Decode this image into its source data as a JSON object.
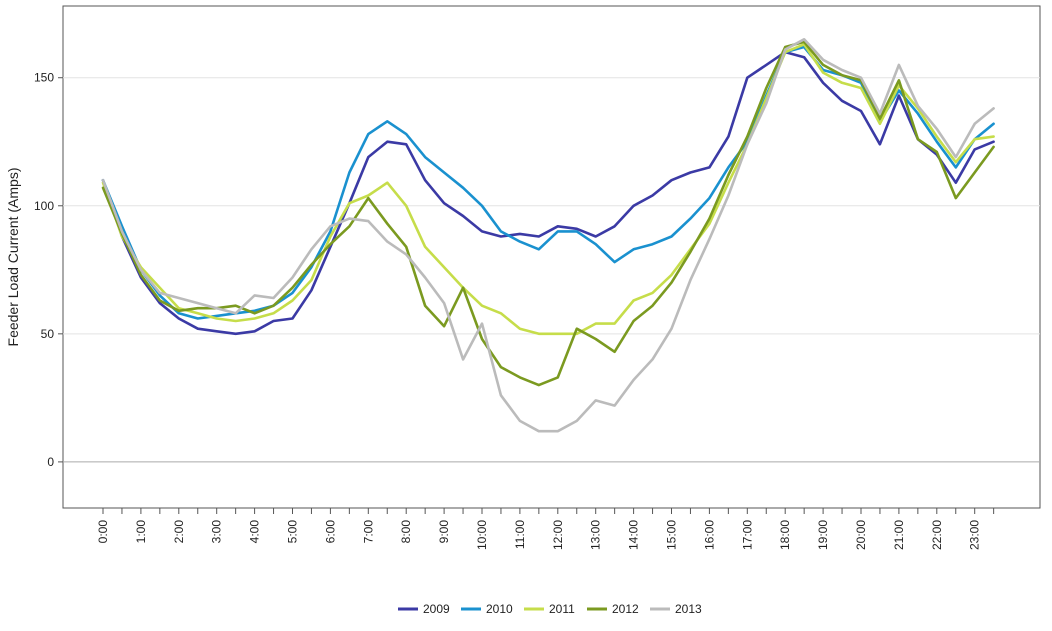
{
  "chart_data": {
    "type": "line",
    "title": "",
    "xlabel": "",
    "ylabel": "Feeder Load Current (Amps)",
    "ylim": [
      -18,
      178
    ],
    "yticks": [
      0,
      50,
      100,
      150
    ],
    "xtick_labels": [
      "0:00",
      "1:00",
      "2:00",
      "3:00",
      "4:00",
      "5:00",
      "6:00",
      "7:00",
      "8:00",
      "9:00",
      "10:00",
      "11:00",
      "12:00",
      "13:00",
      "14:00",
      "15:00",
      "16:00",
      "17:00",
      "18:00",
      "19:00",
      "20:00",
      "21:00",
      "22:00",
      "23:00"
    ],
    "x": [
      "0:00",
      "0:30",
      "1:00",
      "1:30",
      "2:00",
      "2:30",
      "3:00",
      "3:30",
      "4:00",
      "4:30",
      "5:00",
      "5:30",
      "6:00",
      "6:30",
      "7:00",
      "7:30",
      "8:00",
      "8:30",
      "9:00",
      "9:30",
      "10:00",
      "10:30",
      "11:00",
      "11:30",
      "12:00",
      "12:30",
      "13:00",
      "13:30",
      "14:00",
      "14:30",
      "15:00",
      "15:30",
      "16:00",
      "16:30",
      "17:00",
      "17:30",
      "18:00",
      "18:30",
      "19:00",
      "19:30",
      "20:00",
      "20:30",
      "21:00",
      "21:30",
      "22:00",
      "22:30",
      "23:00",
      "23:30"
    ],
    "grid": "horizontal",
    "legend_position": "bottom",
    "series": [
      {
        "name": "2009",
        "color": "#3b3aa5",
        "values": [
          110,
          88,
          72,
          62,
          56,
          52,
          51,
          50,
          51,
          55,
          56,
          67,
          84,
          101,
          119,
          125,
          124,
          110,
          101,
          96,
          90,
          88,
          89,
          88,
          92,
          91,
          88,
          92,
          100,
          104,
          110,
          113,
          115,
          127,
          150,
          155,
          160,
          158,
          148,
          141,
          137,
          124,
          143,
          126,
          120,
          109,
          122,
          125
        ]
      },
      {
        "name": "2010",
        "color": "#1a91cf",
        "values": [
          110,
          92,
          75,
          65,
          58,
          56,
          57,
          58,
          59,
          61,
          66,
          76,
          90,
          113,
          128,
          133,
          128,
          119,
          113,
          107,
          100,
          90,
          86,
          83,
          90,
          90,
          85,
          78,
          83,
          85,
          88,
          95,
          103,
          115,
          125,
          143,
          160,
          162,
          153,
          151,
          148,
          133,
          145,
          136,
          125,
          115,
          126,
          132
        ]
      },
      {
        "name": "2011",
        "color": "#c6dd4a",
        "values": [
          109,
          88,
          76,
          68,
          60,
          58,
          56,
          55,
          56,
          58,
          63,
          71,
          88,
          101,
          104,
          109,
          100,
          84,
          76,
          68,
          61,
          58,
          52,
          50,
          50,
          50,
          54,
          54,
          63,
          66,
          73,
          83,
          93,
          109,
          124,
          142,
          160,
          163,
          152,
          148,
          146,
          132,
          147,
          138,
          127,
          117,
          126,
          127
        ]
      },
      {
        "name": "2012",
        "color": "#7b9a20",
        "values": [
          107,
          89,
          73,
          63,
          59,
          60,
          60,
          61,
          58,
          61,
          68,
          77,
          85,
          92,
          103,
          93,
          84,
          61,
          53,
          68,
          48,
          37,
          33,
          30,
          33,
          52,
          48,
          43,
          55,
          61,
          70,
          82,
          95,
          112,
          127,
          146,
          162,
          164,
          155,
          151,
          149,
          134,
          149,
          126,
          121,
          103,
          113,
          123
        ]
      },
      {
        "name": "2013",
        "color": "#bbbbbb",
        "values": [
          110,
          90,
          75,
          66,
          64,
          62,
          60,
          58,
          65,
          64,
          72,
          83,
          92,
          95,
          94,
          86,
          81,
          72,
          62,
          40,
          54,
          26,
          16,
          12,
          12,
          16,
          24,
          22,
          32,
          40,
          52,
          71,
          87,
          104,
          124,
          140,
          161,
          165,
          157,
          153,
          150,
          136,
          155,
          139,
          130,
          119,
          132,
          138
        ]
      }
    ]
  }
}
